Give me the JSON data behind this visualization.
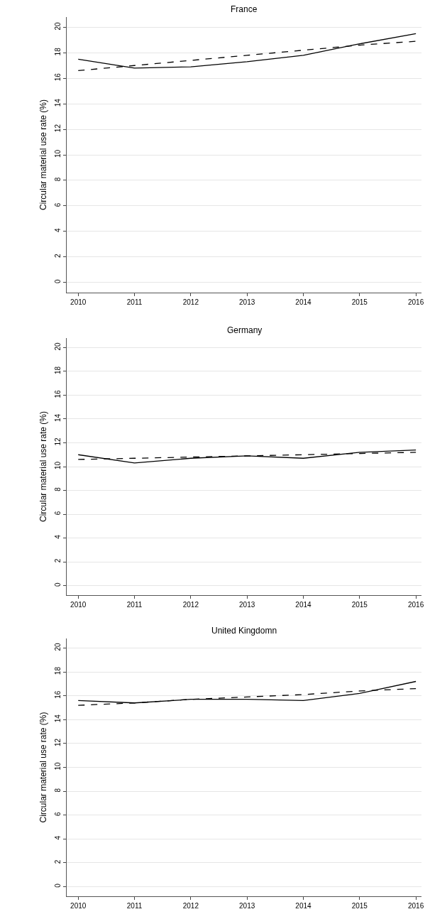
{
  "chart_data": [
    {
      "type": "line",
      "title": "France",
      "ylabel": "Circular material use rate (%)",
      "x": [
        2010,
        2011,
        2012,
        2013,
        2014,
        2015,
        2016
      ],
      "series": [
        {
          "color": "#000000",
          "line_style": "solid",
          "values": [
            17.5,
            16.8,
            16.9,
            17.3,
            17.8,
            18.7,
            19.5
          ]
        },
        {
          "color": "#000000",
          "line_style": "dashed",
          "values": [
            16.6,
            17.0,
            17.4,
            17.8,
            18.2,
            18.6,
            18.9
          ]
        }
      ],
      "xlim": [
        2009.8,
        2016.1
      ],
      "xticks": [
        2010,
        2011,
        2012,
        2013,
        2014,
        2015,
        2016
      ],
      "ylim": [
        -0.8,
        20.8
      ],
      "yticks": [
        0,
        2,
        4,
        6,
        8,
        10,
        12,
        14,
        16,
        18,
        20
      ],
      "grid": "y"
    },
    {
      "type": "line",
      "title": "Germany",
      "ylabel": "Circular material use rate (%)",
      "x": [
        2010,
        2011,
        2012,
        2013,
        2014,
        2015,
        2016
      ],
      "series": [
        {
          "color": "#000000",
          "line_style": "solid",
          "values": [
            11.0,
            10.3,
            10.7,
            10.9,
            10.7,
            11.2,
            11.4
          ]
        },
        {
          "color": "#000000",
          "line_style": "dashed",
          "values": [
            10.6,
            10.7,
            10.8,
            10.9,
            11.0,
            11.1,
            11.2
          ]
        }
      ],
      "xlim": [
        2009.8,
        2016.1
      ],
      "xticks": [
        2010,
        2011,
        2012,
        2013,
        2014,
        2015,
        2016
      ],
      "ylim": [
        -0.8,
        20.8
      ],
      "yticks": [
        0,
        2,
        4,
        6,
        8,
        10,
        12,
        14,
        16,
        18,
        20
      ],
      "grid": "y"
    },
    {
      "type": "line",
      "title": "United Kingdomn",
      "ylabel": "Circular material use rate (%)",
      "x": [
        2010,
        2011,
        2012,
        2013,
        2014,
        2015,
        2016
      ],
      "series": [
        {
          "color": "#000000",
          "line_style": "solid",
          "values": [
            15.6,
            15.4,
            15.7,
            15.7,
            15.6,
            16.2,
            17.2
          ]
        },
        {
          "color": "#000000",
          "line_style": "dashed",
          "values": [
            15.2,
            15.4,
            15.7,
            15.9,
            16.1,
            16.4,
            16.6
          ]
        }
      ],
      "xlim": [
        2009.8,
        2016.1
      ],
      "xticks": [
        2010,
        2011,
        2012,
        2013,
        2014,
        2015,
        2016
      ],
      "ylim": [
        -0.8,
        20.8
      ],
      "yticks": [
        0,
        2,
        4,
        6,
        8,
        10,
        12,
        14,
        16,
        18,
        20
      ],
      "grid": "y"
    }
  ]
}
